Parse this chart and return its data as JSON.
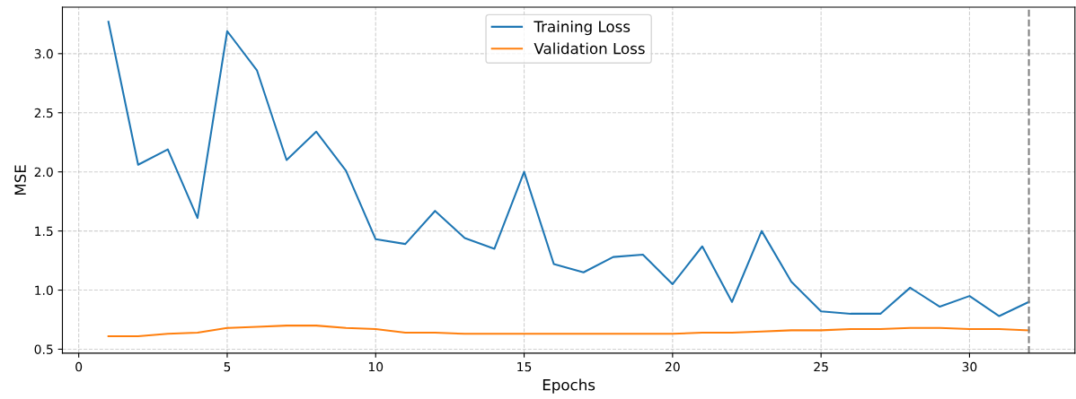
{
  "chart_data": {
    "type": "line",
    "xlabel": "Epochs",
    "ylabel": "MSE",
    "x": [
      1,
      2,
      3,
      4,
      5,
      6,
      7,
      8,
      9,
      10,
      11,
      12,
      13,
      14,
      15,
      16,
      17,
      18,
      19,
      20,
      21,
      22,
      23,
      24,
      25,
      26,
      27,
      28,
      29,
      30,
      31,
      32
    ],
    "series": [
      {
        "name": "Training Loss",
        "color": "#1f77b4",
        "values": [
          3.27,
          2.06,
          2.19,
          1.61,
          3.19,
          2.86,
          2.1,
          2.34,
          2.01,
          1.43,
          1.39,
          1.67,
          1.44,
          1.35,
          2.0,
          1.22,
          1.15,
          1.28,
          1.3,
          1.05,
          1.37,
          0.9,
          1.5,
          1.07,
          0.82,
          0.8,
          0.8,
          1.02,
          0.86,
          0.95,
          0.78,
          0.9
        ]
      },
      {
        "name": "Validation Loss",
        "color": "#ff7f0e",
        "values": [
          0.61,
          0.61,
          0.63,
          0.64,
          0.68,
          0.69,
          0.7,
          0.7,
          0.68,
          0.67,
          0.64,
          0.64,
          0.63,
          0.63,
          0.63,
          0.63,
          0.63,
          0.63,
          0.63,
          0.63,
          0.64,
          0.64,
          0.65,
          0.66,
          0.66,
          0.67,
          0.67,
          0.68,
          0.68,
          0.67,
          0.67,
          0.66
        ]
      }
    ],
    "xlim": [
      -0.55,
      33.55
    ],
    "xticks": [
      0,
      5,
      10,
      15,
      20,
      25,
      30
    ],
    "ylim": [
      0.467,
      3.393
    ],
    "yticks": [
      0.5,
      {
        "value": 1,
        "label": "1.0"
      },
      1.5,
      {
        "value": 2,
        "label": "2.0"
      },
      2.5,
      {
        "value": 3,
        "label": "3.0"
      }
    ],
    "ref_lines": [
      {
        "axis": "x",
        "value": 32,
        "color": "#808080",
        "line_style": "dashed"
      }
    ],
    "grid": true,
    "legend": "top center",
    "line_style": "solid"
  }
}
